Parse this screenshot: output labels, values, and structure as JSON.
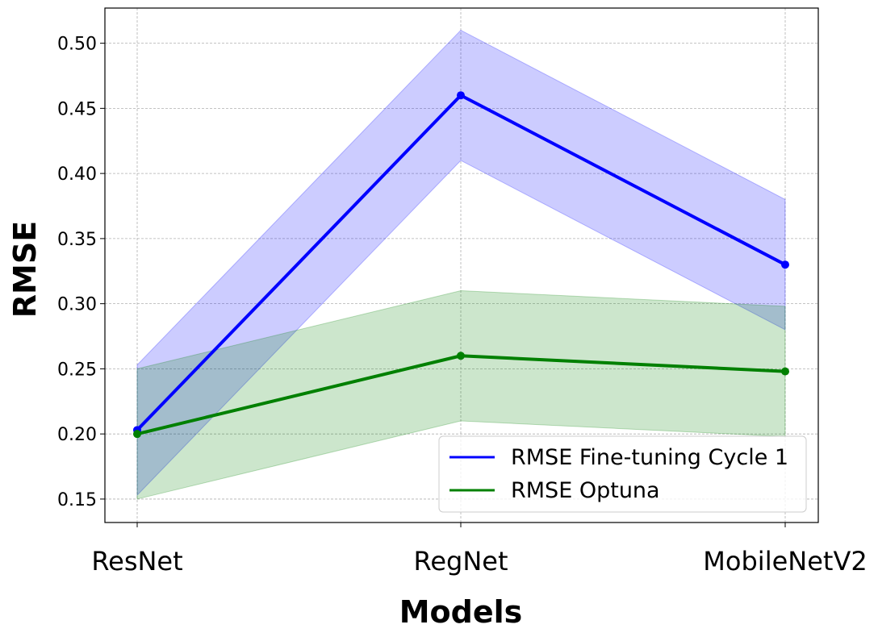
{
  "chart_data": {
    "type": "line",
    "title": "",
    "xlabel": "Models",
    "ylabel": "RMSE",
    "categories": [
      "ResNet",
      "RegNet",
      "MobileNetV2"
    ],
    "ylim": [
      0.132,
      0.527
    ],
    "yticks": [
      "0.15",
      "0.20",
      "0.25",
      "0.30",
      "0.35",
      "0.40",
      "0.45",
      "0.50"
    ],
    "grid": true,
    "legend_position": "lower-right",
    "series": [
      {
        "name": "RMSE Fine-tuning Cycle 1",
        "color": "#0000ff",
        "band_color": "#0000ff",
        "values": [
          0.203,
          0.46,
          0.33
        ],
        "lower": [
          0.153,
          0.41,
          0.28
        ],
        "upper": [
          0.253,
          0.51,
          0.38
        ]
      },
      {
        "name": "RMSE Optuna",
        "color": "#008000",
        "band_color": "#008000",
        "values": [
          0.2,
          0.26,
          0.248
        ],
        "lower": [
          0.15,
          0.21,
          0.198
        ],
        "upper": [
          0.25,
          0.31,
          0.298
        ]
      }
    ]
  }
}
